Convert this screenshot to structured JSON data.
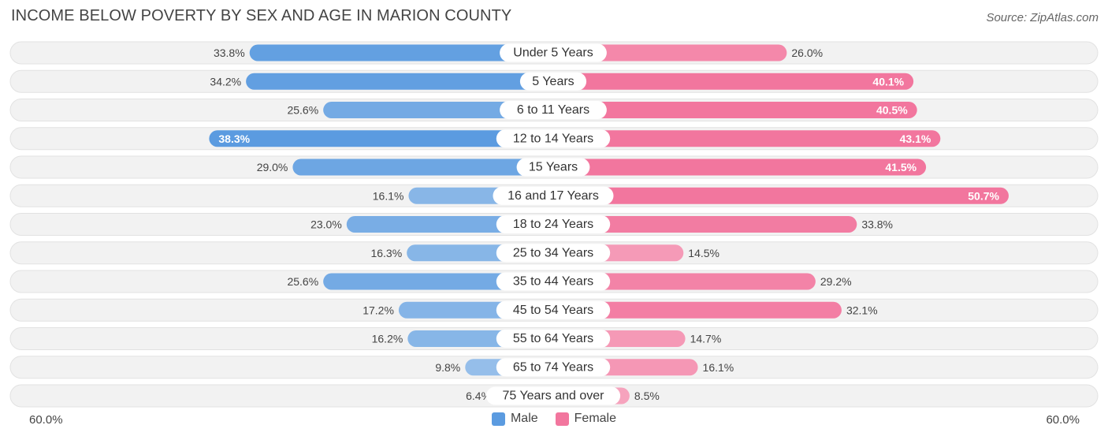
{
  "title": "INCOME BELOW POVERTY BY SEX AND AGE IN MARION COUNTY",
  "source": "Source: ZipAtlas.com",
  "axis": {
    "left_label": "60.0%",
    "right_label": "60.0%"
  },
  "legend": {
    "male_label": "Male",
    "female_label": "Female"
  },
  "colors": {
    "male_strong": "#5b9be0",
    "male_light": "#a9caed",
    "female_strong": "#f2769e",
    "female_light": "#f7b0c6",
    "row_bg": "#f2f2f2",
    "row_border": "#e2e2e2"
  },
  "chart_data": {
    "type": "bar",
    "orientation": "horizontal-diverging",
    "title": "INCOME BELOW POVERTY BY SEX AND AGE IN MARION COUNTY",
    "xlim": [
      -60,
      60
    ],
    "categories": [
      "Under 5 Years",
      "5 Years",
      "6 to 11 Years",
      "12 to 14 Years",
      "15 Years",
      "16 and 17 Years",
      "18 to 24 Years",
      "25 to 34 Years",
      "35 to 44 Years",
      "45 to 54 Years",
      "55 to 64 Years",
      "65 to 74 Years",
      "75 Years and over"
    ],
    "series": [
      {
        "name": "Male",
        "values": [
          33.8,
          34.2,
          25.6,
          38.3,
          29.0,
          16.1,
          23.0,
          16.3,
          25.6,
          17.2,
          16.2,
          9.8,
          6.4
        ]
      },
      {
        "name": "Female",
        "values": [
          26.0,
          40.1,
          40.5,
          43.1,
          41.5,
          50.7,
          33.8,
          14.5,
          29.2,
          32.1,
          14.7,
          16.1,
          8.5
        ]
      }
    ],
    "value_format": "%"
  }
}
